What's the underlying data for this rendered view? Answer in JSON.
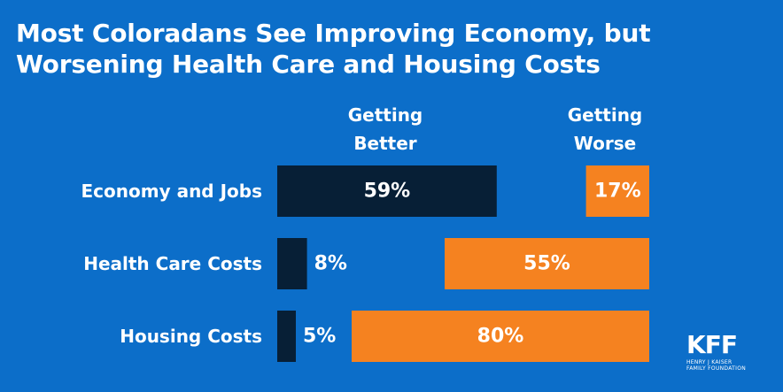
{
  "title_lines": [
    "Most Coloradans See Improving Economy, but",
    "Worsening Health Care and Housing Costs"
  ],
  "chart_data": {
    "type": "bar",
    "orientation": "horizontal",
    "title": "Most Coloradans See Improving Economy, but Worsening Health Care and Housing Costs",
    "categories": [
      "Economy and Jobs",
      "Health Care Costs",
      "Housing Costs"
    ],
    "series": [
      {
        "name": "Getting Better",
        "values": [
          59,
          8,
          5
        ],
        "color": "#071f36"
      },
      {
        "name": "Getting Worse",
        "values": [
          17,
          55,
          80
        ],
        "color": "#f58220"
      }
    ],
    "value_suffix": "%",
    "xlim": [
      0,
      100
    ]
  },
  "column_headers": {
    "better": [
      "Getting",
      "Better"
    ],
    "worse": [
      "Getting",
      "Worse"
    ]
  },
  "logo": {
    "mark": "KFF",
    "subtitle_lines": [
      "HENRY J KAISER",
      "FAMILY FOUNDATION"
    ]
  }
}
